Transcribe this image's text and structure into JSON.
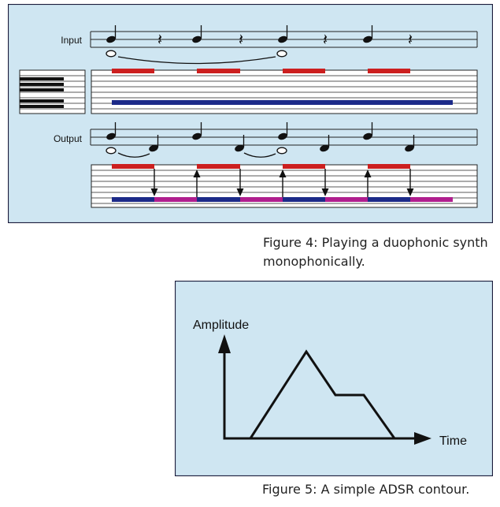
{
  "figure4": {
    "caption": "Figure 4: Playing a duophonic synth monophonically.",
    "input_label": "Input",
    "output_label": "Output",
    "colors": {
      "background": "#cfe6f2",
      "border": "#1a1a3a",
      "red": "#cc1f1f",
      "blue": "#1c2a88",
      "magenta": "#b01e8e",
      "ink": "#111111"
    }
  },
  "figure5": {
    "caption": "Figure 5: A simple ADSR contour.",
    "y_axis_label": "Amplitude",
    "x_axis_label": "Time",
    "colors": {
      "background": "#cfe6f2",
      "border": "#1a1a3a",
      "ink": "#111111"
    }
  }
}
